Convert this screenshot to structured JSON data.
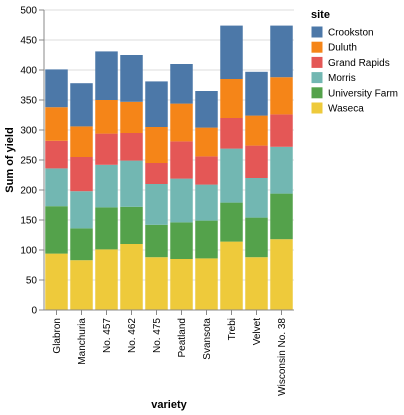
{
  "chart_data": {
    "type": "bar",
    "stacked": true,
    "categories": [
      "Glabron",
      "Manchuria",
      "No. 457",
      "No. 462",
      "No. 475",
      "Peatland",
      "Svansota",
      "Trebi",
      "Velvet",
      "Wisconsin No. 38"
    ],
    "series": [
      {
        "name": "Waseca",
        "color": "#eeca3b",
        "values": [
          94,
          83,
          101,
          110,
          88,
          85,
          86,
          114,
          88,
          118
        ]
      },
      {
        "name": "University Farm",
        "color": "#54a24b",
        "values": [
          79,
          53,
          70,
          62,
          54,
          61,
          63,
          65,
          66,
          76
        ]
      },
      {
        "name": "Morris",
        "color": "#72b7b2",
        "values": [
          63,
          62,
          71,
          77,
          68,
          73,
          60,
          90,
          66,
          78
        ]
      },
      {
        "name": "Grand Rapids",
        "color": "#e45756",
        "values": [
          46,
          57,
          52,
          46,
          35,
          62,
          47,
          51,
          54,
          54
        ]
      },
      {
        "name": "Duluth",
        "color": "#f58518",
        "values": [
          56,
          51,
          56,
          52,
          60,
          63,
          48,
          65,
          50,
          62
        ]
      },
      {
        "name": "Crookston",
        "color": "#4c78a8",
        "values": [
          63,
          72,
          81,
          78,
          76,
          66,
          61,
          89,
          73,
          86
        ]
      }
    ],
    "xlabel": "variety",
    "ylabel": "Sum of yield",
    "ylim": [
      0,
      500
    ],
    "yticks": [
      0,
      50,
      100,
      150,
      200,
      250,
      300,
      350,
      400,
      450,
      500
    ],
    "grid": true,
    "legend": {
      "title": "site",
      "placement": "right",
      "entries": [
        {
          "name": "Crookston",
          "color": "#4c78a8"
        },
        {
          "name": "Duluth",
          "color": "#f58518"
        },
        {
          "name": "Grand Rapids",
          "color": "#e45756"
        },
        {
          "name": "Morris",
          "color": "#72b7b2"
        },
        {
          "name": "University Farm",
          "color": "#54a24b"
        },
        {
          "name": "Waseca",
          "color": "#eeca3b"
        }
      ]
    }
  }
}
